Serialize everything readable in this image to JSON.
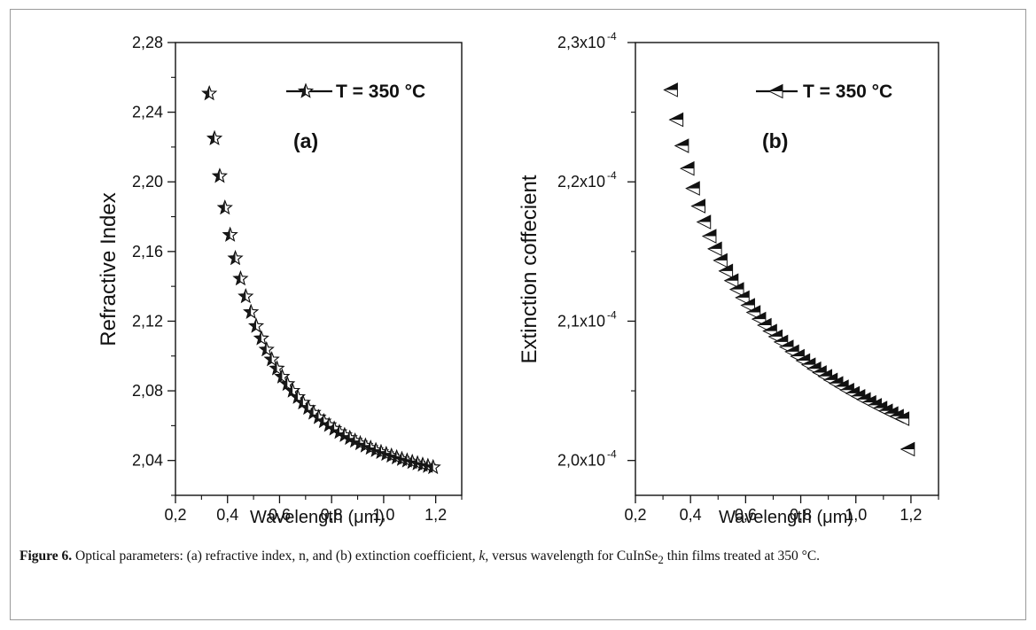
{
  "figure": {
    "caption_label": "Figure 6.",
    "caption_parts": {
      "p1": " Optical parameters: (a) refractive index, n, and (b) extinction coefficient, ",
      "k": "k",
      "p2": ", versus wavelength for CuInSe",
      "sub": "2",
      "p3": " thin films treated at 350 °C."
    }
  },
  "chart_data": [
    {
      "type": "scatter",
      "panel_label": "(a)",
      "xlabel": "Wavelength (μm)",
      "ylabel": "Refractive Index",
      "xlim": [
        0.2,
        1.3
      ],
      "ylim": [
        2.02,
        2.28
      ],
      "xticks": [
        "0,2",
        "0,4",
        "0,6",
        "0,8",
        "1,0",
        "1,2"
      ],
      "xtick_values": [
        0.2,
        0.4,
        0.6,
        0.8,
        1.0,
        1.2
      ],
      "yticks": [
        "2,04",
        "2,08",
        "2,12",
        "2,16",
        "2,20",
        "2,24",
        "2,28"
      ],
      "ytick_values": [
        2.04,
        2.08,
        2.12,
        2.16,
        2.2,
        2.24,
        2.28
      ],
      "marker": "star",
      "series": [
        {
          "name": "T = 350 °C",
          "x": [
            0.33,
            0.35,
            0.37,
            0.39,
            0.41,
            0.43,
            0.45,
            0.47,
            0.49,
            0.51,
            0.53,
            0.55,
            0.57,
            0.59,
            0.61,
            0.63,
            0.65,
            0.67,
            0.69,
            0.71,
            0.73,
            0.75,
            0.77,
            0.79,
            0.81,
            0.83,
            0.85,
            0.87,
            0.89,
            0.91,
            0.93,
            0.95,
            0.97,
            0.99,
            1.01,
            1.03,
            1.05,
            1.07,
            1.09,
            1.11,
            1.13,
            1.15,
            1.17,
            1.19
          ],
          "y": [
            2.2507,
            2.2249,
            2.2033,
            2.1851,
            2.1695,
            2.1561,
            2.1444,
            2.1342,
            2.1252,
            2.1172,
            2.1101,
            2.1037,
            2.098,
            2.0928,
            2.0881,
            2.0839,
            2.08,
            2.0764,
            2.0732,
            2.0702,
            2.0674,
            2.0648,
            2.0625,
            2.0603,
            2.0582,
            2.0563,
            2.0545,
            2.0529,
            2.0513,
            2.0498,
            2.0485,
            2.0472,
            2.0459,
            2.0448,
            2.0437,
            2.0427,
            2.0417,
            2.0408,
            2.0399,
            2.0391,
            2.0383,
            2.0375,
            2.0368,
            2.0361
          ]
        }
      ]
    },
    {
      "type": "scatter",
      "panel_label": "(b)",
      "xlabel": "Wavelength (μm)",
      "ylabel": "Extinction coffecient",
      "xlim": [
        0.2,
        1.3
      ],
      "ylim": [
        1.975,
        2.3
      ],
      "y_scale_note": "x10^-4",
      "xticks": [
        "0,2",
        "0,4",
        "0,6",
        "0,8",
        "1,0",
        "1,2"
      ],
      "xtick_values": [
        0.2,
        0.4,
        0.6,
        0.8,
        1.0,
        1.2
      ],
      "yticks": [
        "2,0x10",
        "2,1x10",
        "2,2x10",
        "2,3x10"
      ],
      "ytick_exponent": "-4",
      "ytick_values": [
        2.0,
        2.1,
        2.2,
        2.3
      ],
      "marker": "left-triangle",
      "series": [
        {
          "name": "T = 350 °C",
          "x": [
            0.33,
            0.35,
            0.37,
            0.39,
            0.41,
            0.43,
            0.45,
            0.47,
            0.49,
            0.51,
            0.53,
            0.55,
            0.57,
            0.59,
            0.61,
            0.63,
            0.65,
            0.67,
            0.69,
            0.71,
            0.73,
            0.75,
            0.77,
            0.79,
            0.81,
            0.83,
            0.85,
            0.87,
            0.89,
            0.91,
            0.93,
            0.95,
            0.97,
            0.99,
            1.01,
            1.03,
            1.05,
            1.07,
            1.09,
            1.11,
            1.13,
            1.15,
            1.17,
            1.19
          ],
          "y": [
            2.266,
            2.2446,
            2.2259,
            2.2096,
            2.1953,
            2.1826,
            2.1712,
            2.161,
            2.1519,
            2.1436,
            2.136,
            2.1291,
            2.1228,
            2.1169,
            2.1114,
            2.1063,
            2.1015,
            2.0971,
            2.0929,
            2.0889,
            2.0851,
            2.0815,
            2.0781,
            2.0748,
            2.0717,
            2.0687,
            2.0658,
            2.0631,
            2.0604,
            2.0578,
            2.0553,
            2.0529,
            2.0505,
            2.0482,
            2.046,
            2.0438,
            2.0417,
            2.0396,
            2.0376,
            2.0356,
            2.0337,
            2.0318,
            2.03,
            2.0081
          ]
        }
      ]
    }
  ]
}
